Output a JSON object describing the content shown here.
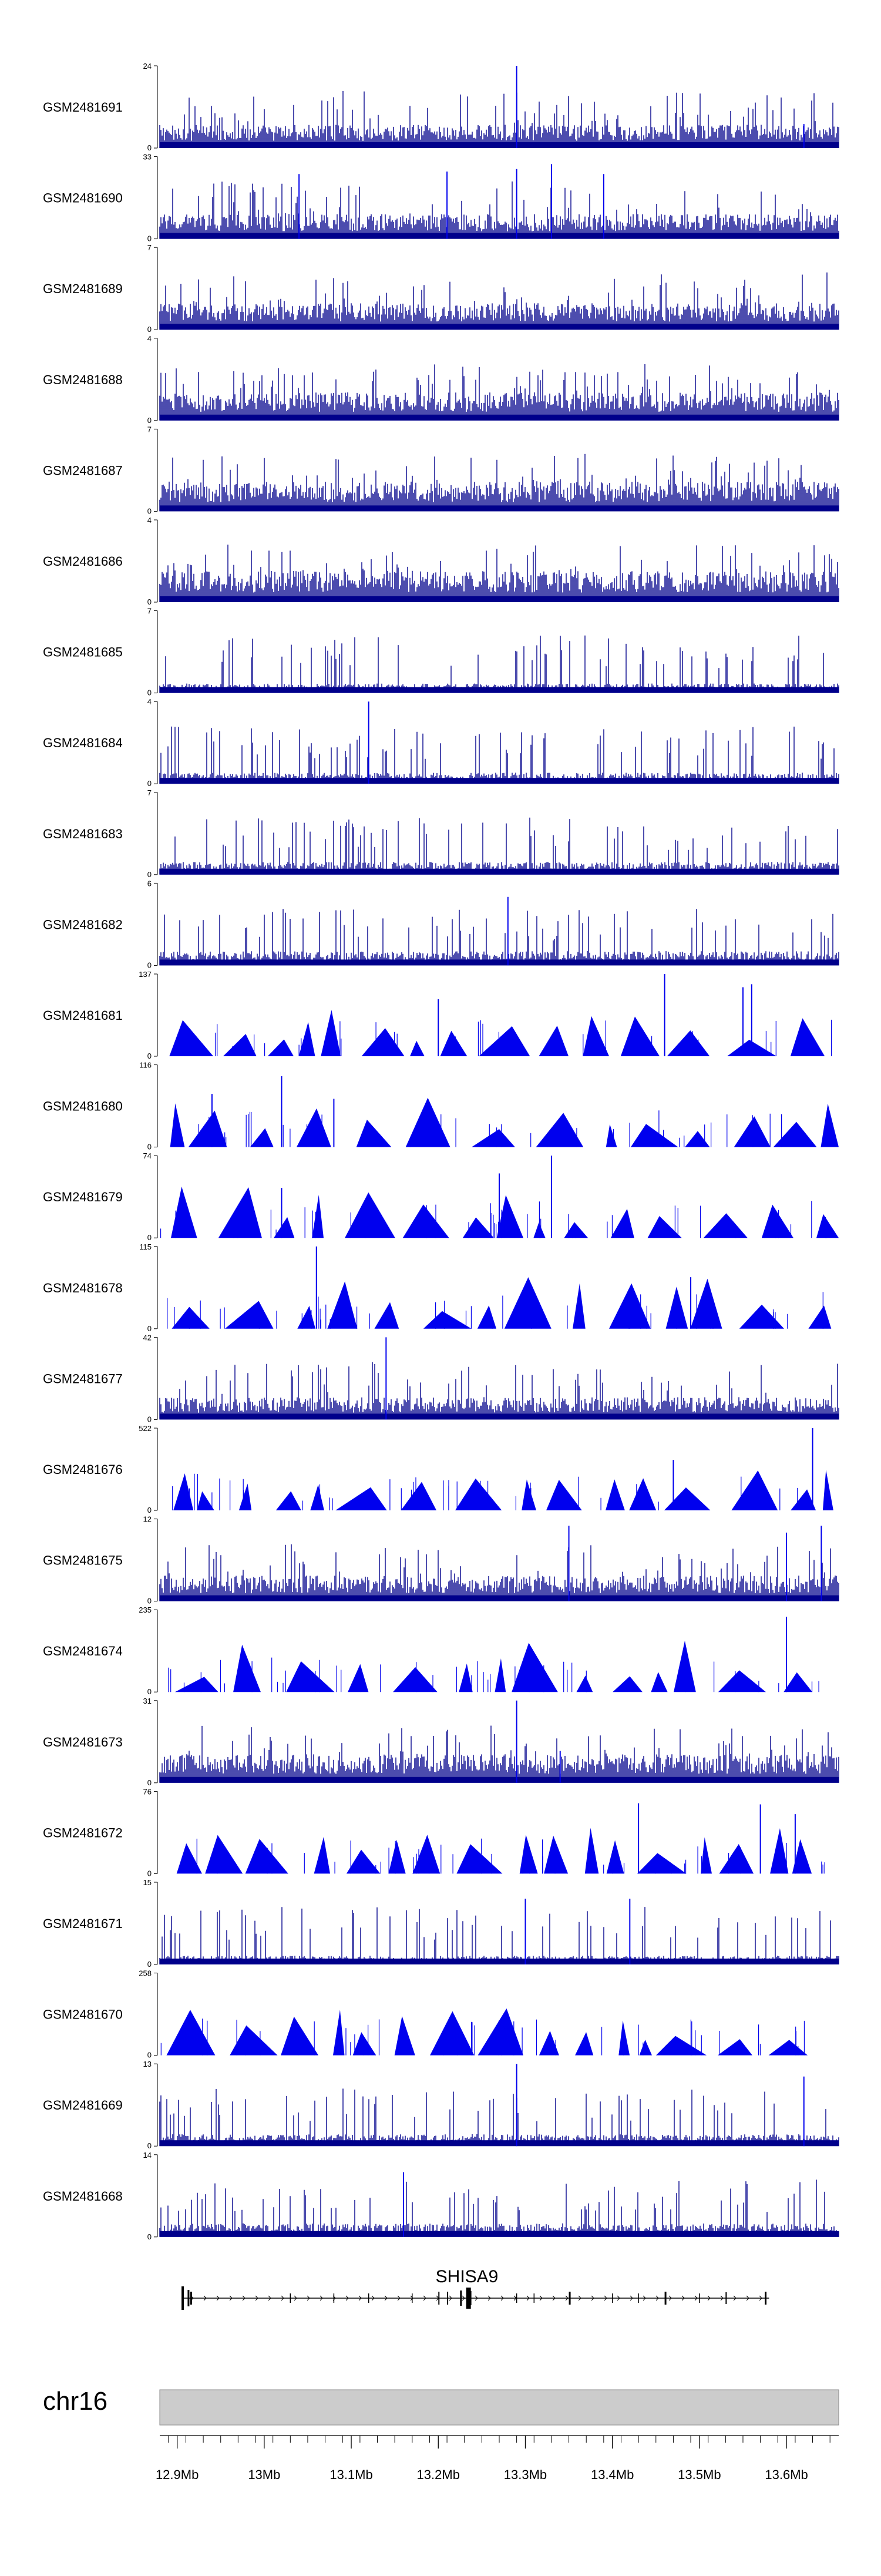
{
  "tracks": [
    {
      "label": "GSM2481691",
      "ymax": "24",
      "ymin": "0",
      "style": "bars",
      "peaks": [
        [
          13.29,
          24
        ],
        [
          13.62,
          7
        ]
      ]
    },
    {
      "label": "GSM2481690",
      "ymax": "33",
      "ymin": "0",
      "style": "bars",
      "peaks": [
        [
          13.04,
          26
        ],
        [
          13.21,
          27
        ],
        [
          13.29,
          28
        ],
        [
          13.33,
          30
        ],
        [
          13.39,
          26
        ]
      ]
    },
    {
      "label": "GSM2481689",
      "ymax": "7",
      "ymin": "0",
      "style": "bars",
      "peaks": []
    },
    {
      "label": "GSM2481688",
      "ymax": "4",
      "ymin": "0",
      "style": "bars",
      "peaks": []
    },
    {
      "label": "GSM2481687",
      "ymax": "7",
      "ymin": "0",
      "style": "bars",
      "peaks": []
    },
    {
      "label": "GSM2481686",
      "ymax": "4",
      "ymin": "0",
      "style": "bars",
      "peaks": []
    },
    {
      "label": "GSM2481685",
      "ymax": "7",
      "ymin": "0",
      "style": "bars",
      "peaks": []
    },
    {
      "label": "GSM2481684",
      "ymax": "4",
      "ymin": "0",
      "style": "bars",
      "peaks": [
        [
          13.12,
          4
        ]
      ]
    },
    {
      "label": "GSM2481683",
      "ymax": "7",
      "ymin": "0",
      "style": "bars",
      "peaks": []
    },
    {
      "label": "GSM2481682",
      "ymax": "6",
      "ymin": "0",
      "style": "bars",
      "peaks": [
        [
          13.28,
          5
        ]
      ]
    },
    {
      "label": "GSM2481681",
      "ymax": "137",
      "ymin": "0",
      "style": "tri",
      "peaks": [
        [
          13.2,
          95
        ],
        [
          13.46,
          137
        ],
        [
          13.55,
          115
        ],
        [
          13.56,
          120
        ]
      ]
    },
    {
      "label": "GSM2481680",
      "ymax": "116",
      "ymin": "0",
      "style": "tri",
      "peaks": [
        [
          12.94,
          75
        ],
        [
          13.02,
          100
        ],
        [
          13.08,
          68
        ]
      ]
    },
    {
      "label": "GSM2481679",
      "ymax": "74",
      "ymin": "0",
      "style": "tri",
      "peaks": [
        [
          13.02,
          45
        ],
        [
          13.27,
          58
        ],
        [
          13.33,
          74
        ]
      ]
    },
    {
      "label": "GSM2481678",
      "ymax": "115",
      "ymin": "0",
      "style": "tri",
      "peaks": [
        [
          13.06,
          115
        ],
        [
          13.49,
          72
        ]
      ]
    },
    {
      "label": "GSM2481677",
      "ymax": "42",
      "ymin": "0",
      "style": "bars",
      "peaks": [
        [
          13.14,
          42
        ]
      ]
    },
    {
      "label": "GSM2481676",
      "ymax": "522",
      "ymin": "0",
      "style": "tri",
      "peaks": [
        [
          13.63,
          522
        ],
        [
          13.47,
          320
        ]
      ]
    },
    {
      "label": "GSM2481675",
      "ymax": "12",
      "ymin": "0",
      "style": "bars",
      "peaks": [
        [
          13.35,
          11
        ],
        [
          13.64,
          11
        ],
        [
          13.6,
          10
        ]
      ]
    },
    {
      "label": "GSM2481674",
      "ymax": "235",
      "ymin": "0",
      "style": "tri",
      "peaks": [
        [
          13.6,
          215
        ]
      ]
    },
    {
      "label": "GSM2481673",
      "ymax": "31",
      "ymin": "0",
      "style": "bars",
      "peaks": [
        [
          13.29,
          31
        ],
        [
          13.34,
          12
        ]
      ]
    },
    {
      "label": "GSM2481672",
      "ymax": "76",
      "ymin": "0",
      "style": "tri",
      "peaks": [
        [
          13.43,
          65
        ],
        [
          13.57,
          64
        ],
        [
          13.61,
          55
        ]
      ]
    },
    {
      "label": "GSM2481671",
      "ymax": "15",
      "ymin": "0",
      "style": "bars",
      "peaks": [
        [
          13.42,
          12
        ],
        [
          13.3,
          12
        ]
      ]
    },
    {
      "label": "GSM2481670",
      "ymax": "258",
      "ymin": "0",
      "style": "tri",
      "peaks": []
    },
    {
      "label": "GSM2481669",
      "ymax": "13",
      "ymin": "0",
      "style": "bars",
      "peaks": [
        [
          13.29,
          13
        ],
        [
          13.62,
          11
        ]
      ]
    },
    {
      "label": "GSM2481668",
      "ymax": "14",
      "ymin": "0",
      "style": "bars",
      "peaks": [
        [
          13.16,
          11
        ]
      ]
    }
  ],
  "gene": {
    "name": "SHISA9",
    "start_mb": 12.905,
    "end_mb": 13.58
  },
  "chromosome": {
    "name": "chr16"
  },
  "chart_data": {
    "type": "area",
    "title": "",
    "xlabel": "chr16",
    "ylabel": "",
    "x_range_mb": [
      12.88,
      13.66
    ],
    "x_tick_labels": [
      "12.9Mb",
      "13Mb",
      "13.1Mb",
      "13.2Mb",
      "13.3Mb",
      "13.4Mb",
      "13.5Mb",
      "13.6Mb"
    ],
    "x_tick_values": [
      12.9,
      13.0,
      13.1,
      13.2,
      13.3,
      13.4,
      13.5,
      13.6
    ],
    "series": [
      {
        "name": "GSM2481691",
        "ylim": [
          0,
          24
        ]
      },
      {
        "name": "GSM2481690",
        "ylim": [
          0,
          33
        ]
      },
      {
        "name": "GSM2481689",
        "ylim": [
          0,
          7
        ]
      },
      {
        "name": "GSM2481688",
        "ylim": [
          0,
          4
        ]
      },
      {
        "name": "GSM2481687",
        "ylim": [
          0,
          7
        ]
      },
      {
        "name": "GSM2481686",
        "ylim": [
          0,
          4
        ]
      },
      {
        "name": "GSM2481685",
        "ylim": [
          0,
          7
        ]
      },
      {
        "name": "GSM2481684",
        "ylim": [
          0,
          4
        ]
      },
      {
        "name": "GSM2481683",
        "ylim": [
          0,
          7
        ]
      },
      {
        "name": "GSM2481682",
        "ylim": [
          0,
          6
        ]
      },
      {
        "name": "GSM2481681",
        "ylim": [
          0,
          137
        ]
      },
      {
        "name": "GSM2481680",
        "ylim": [
          0,
          116
        ]
      },
      {
        "name": "GSM2481679",
        "ylim": [
          0,
          74
        ]
      },
      {
        "name": "GSM2481678",
        "ylim": [
          0,
          115
        ]
      },
      {
        "name": "GSM2481677",
        "ylim": [
          0,
          42
        ]
      },
      {
        "name": "GSM2481676",
        "ylim": [
          0,
          522
        ]
      },
      {
        "name": "GSM2481675",
        "ylim": [
          0,
          12
        ]
      },
      {
        "name": "GSM2481674",
        "ylim": [
          0,
          235
        ]
      },
      {
        "name": "GSM2481673",
        "ylim": [
          0,
          31
        ]
      },
      {
        "name": "GSM2481672",
        "ylim": [
          0,
          76
        ]
      },
      {
        "name": "GSM2481671",
        "ylim": [
          0,
          15
        ]
      },
      {
        "name": "GSM2481670",
        "ylim": [
          0,
          258
        ]
      },
      {
        "name": "GSM2481669",
        "ylim": [
          0,
          13
        ]
      },
      {
        "name": "GSM2481668",
        "ylim": [
          0,
          14
        ]
      }
    ]
  },
  "colors": {
    "signal": "#0000ee",
    "signal_dark": "#00008b",
    "ideogram": "#cccccc",
    "axis": "#000000"
  }
}
